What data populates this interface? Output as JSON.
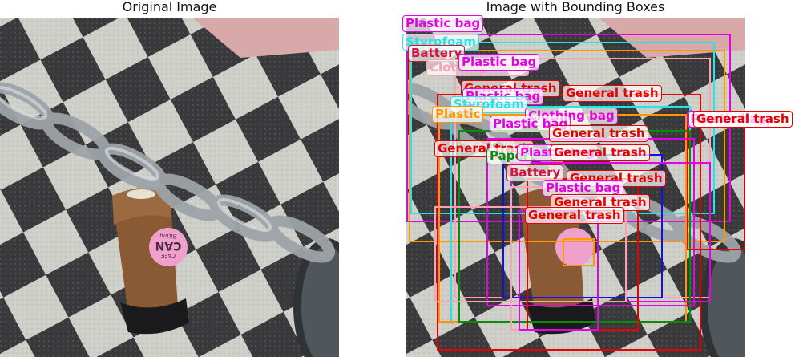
{
  "titles": {
    "left": "Original Image",
    "right": "Image with Bounding Boxes"
  },
  "icons": {
    "photo": "photo-scene-icon"
  },
  "colors": {
    "plastic_bag": "#e600e6",
    "styrofoam": "#22e6e6",
    "battery": "#d2143c",
    "clothing_trash": "#ffa0b4",
    "general_trash": "#e60000",
    "plastic": "#ff9800",
    "paper": "#0a8c0a",
    "plastic_blue": "#1010e6"
  },
  "cup": {
    "logo_top": "CAFE",
    "logo_main": "CAN",
    "logo_script": "Biting"
  },
  "labels": [
    {
      "text": "Plastic bag",
      "color": "#e600e6"
    },
    {
      "text": "Styrofoam",
      "color": "#22e6e6"
    },
    {
      "text": "Battery",
      "color": "#d2143c"
    },
    {
      "text": "Clothing trash",
      "color": "#ffa0b4"
    },
    {
      "text": "Plastic bag",
      "color": "#e600e6"
    },
    {
      "text": "General trash",
      "color": "#e60000"
    },
    {
      "text": "Plastic bag",
      "color": "#e600e6"
    },
    {
      "text": "General trash",
      "color": "#e60000"
    },
    {
      "text": "Styrofoam",
      "color": "#22e6e6"
    },
    {
      "text": "Plastic",
      "color": "#ff9800"
    },
    {
      "text": "Clothing bag",
      "color": "#e600e6"
    },
    {
      "text": "Plastic bag",
      "color": "#e600e6"
    },
    {
      "text": "General trash",
      "color": "#e60000"
    },
    {
      "text": "General trash",
      "color": "#e60000"
    },
    {
      "text": "Paper",
      "color": "#0a8c0a"
    },
    {
      "text": "Plastic bag",
      "color": "#e600e6"
    },
    {
      "text": "General trash",
      "color": "#e60000"
    },
    {
      "text": "Battery",
      "color": "#d2143c"
    },
    {
      "text": "General trash",
      "color": "#e60000"
    },
    {
      "text": "Plastic bag",
      "color": "#e600e6"
    },
    {
      "text": "General trash",
      "color": "#e60000"
    },
    {
      "text": "General trash",
      "color": "#e60000"
    },
    {
      "text": "Plastic bag",
      "color": "#e600e6"
    },
    {
      "text": "Plastic bag",
      "color": "#e600e6"
    },
    {
      "text": "General trash",
      "color": "#e60000"
    }
  ]
}
